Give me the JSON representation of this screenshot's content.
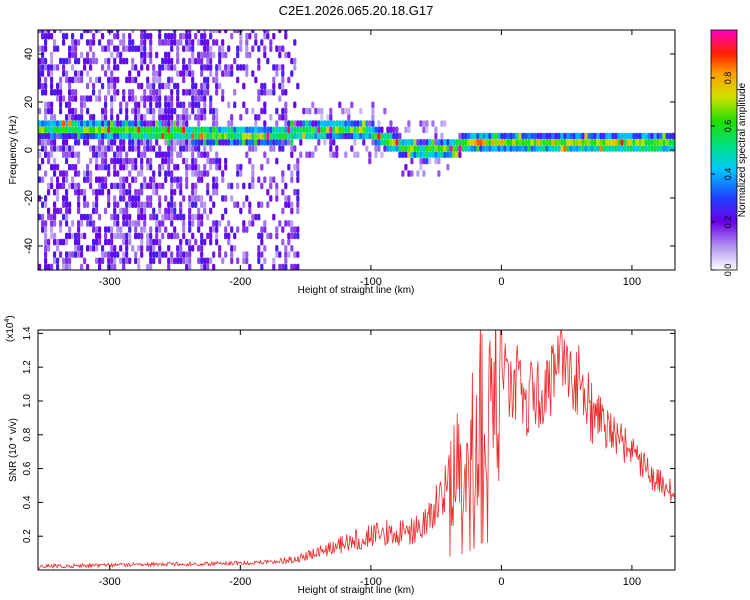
{
  "title": "C2E1.2026.065.20.18.G17",
  "colors": {
    "snr_line": "#ee2a2a",
    "background": "#ffffff",
    "axis": "#000000"
  },
  "chart_data": [
    {
      "type": "heatmap",
      "xlabel": "Height of straight line (km)",
      "ylabel": "Frequency (Hz)",
      "xlim": [
        -355,
        133
      ],
      "ylim": [
        -50,
        50
      ],
      "xticks": [
        -300,
        -200,
        -100,
        0,
        100
      ],
      "yticks": [
        -40,
        -20,
        0,
        20,
        40
      ],
      "colorbar": {
        "label": "Normalized spectral amplitude",
        "range": [
          0.0,
          1.0
        ],
        "ticks": [
          "0.0",
          "0.2",
          "0.4",
          "0.6",
          "0.8"
        ],
        "tick_values": [
          0.0,
          0.2,
          0.4,
          0.6,
          0.8
        ],
        "colormap": "rainbow (white-purple-blue-cyan-green-yellow-red-magenta)"
      },
      "ridge": {
        "x": [
          -330,
          -300,
          -260,
          -220,
          -200,
          -180,
          -160,
          -140,
          -120,
          -100,
          -90,
          -75,
          -60,
          -45,
          -30,
          -20,
          0,
          20,
          60,
          100,
          133
        ],
        "y": [
          8,
          7,
          6,
          5.5,
          5,
          5,
          6,
          7,
          8,
          6,
          3,
          0,
          -2,
          -1,
          1,
          2,
          2,
          1.5,
          1.5,
          1.5,
          1.5
        ]
      },
      "noise_region_x": [
        -355,
        -155
      ]
    },
    {
      "type": "line",
      "title": "",
      "xlabel": "Height of straight line (km)",
      "ylabel": "SNR (10 * v/v)",
      "yscale_label": "(x10",
      "yscale_exponent": "4",
      "xlim": [
        -355,
        133
      ],
      "ylim": [
        0,
        1.42
      ],
      "xticks": [
        -300,
        -200,
        -100,
        0,
        100
      ],
      "yticks": [
        "0.2",
        "0.4",
        "0.6",
        "0.8",
        "1.0",
        "1.2",
        "1.4"
      ],
      "ytick_values": [
        0.2,
        0.4,
        0.6,
        0.8,
        1.0,
        1.2,
        1.4
      ],
      "series": [
        {
          "name": "SNR",
          "x": [
            -355,
            -300,
            -250,
            -200,
            -170,
            -150,
            -130,
            -110,
            -90,
            -70,
            -55,
            -45,
            -38,
            -30,
            -22,
            -15,
            -8,
            0,
            10,
            20,
            35,
            50,
            55,
            65,
            80,
            100,
            115,
            125,
            133
          ],
          "y": [
            0.02,
            0.03,
            0.035,
            0.04,
            0.05,
            0.08,
            0.13,
            0.18,
            0.22,
            0.22,
            0.3,
            0.45,
            0.55,
            0.62,
            0.8,
            1.05,
            1.1,
            1.15,
            1.12,
            1.0,
            1.1,
            1.22,
            1.18,
            1.0,
            0.85,
            0.7,
            0.55,
            0.5,
            0.45
          ]
        }
      ]
    }
  ]
}
